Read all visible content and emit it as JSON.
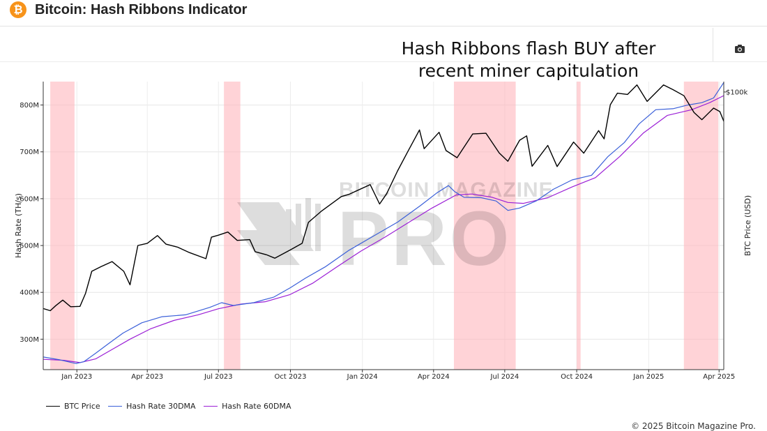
{
  "header": {
    "logo_glyph": "₿",
    "title": "Bitcoin: Hash Ribbons Indicator"
  },
  "toolbar": {
    "camera_icon": "camera-icon"
  },
  "colors": {
    "brand_orange": "#f7931a",
    "btc_price": "#000000",
    "hash_30dma": "#3a5fd9",
    "hash_60dma": "#9b1fd6",
    "capitulation_band": "#ffb6bd"
  },
  "footer": {
    "copyright": "© 2025 Bitcoin Magazine Pro."
  },
  "chart_data": {
    "type": "line",
    "title_lines": [
      "Hash Ribbons flash BUY after",
      "recent miner capitulation"
    ],
    "watermark": "BITCOIN MAGAZINE PRO",
    "x_range": [
      "2022-11-19",
      "2025-04-07"
    ],
    "x_ticks": [
      {
        "date": "2023-01-01",
        "label": "Jan 2023"
      },
      {
        "date": "2023-04-01",
        "label": "Apr 2023"
      },
      {
        "date": "2023-07-01",
        "label": "Jul 2023"
      },
      {
        "date": "2023-10-01",
        "label": "Oct 2023"
      },
      {
        "date": "2024-01-01",
        "label": "Jan 2024"
      },
      {
        "date": "2024-04-01",
        "label": "Apr 2024"
      },
      {
        "date": "2024-07-01",
        "label": "Jul 2024"
      },
      {
        "date": "2024-10-01",
        "label": "Oct 2024"
      },
      {
        "date": "2025-01-01",
        "label": "Jan 2025"
      },
      {
        "date": "2025-04-01",
        "label": "Apr 2025"
      }
    ],
    "y_left": {
      "label": "Hash Rate (TH/s)",
      "range": [
        235,
        850
      ],
      "ticks": [
        {
          "value": 300,
          "label": "300M"
        },
        {
          "value": 400,
          "label": "400M"
        },
        {
          "value": 500,
          "label": "500M"
        },
        {
          "value": 600,
          "label": "600M"
        },
        {
          "value": 700,
          "label": "700M"
        },
        {
          "value": 800,
          "label": "800M"
        }
      ]
    },
    "y_right": {
      "label": "BTC Price (USD)",
      "scale": "log",
      "range": [
        10000,
        109000
      ],
      "ticks": [
        {
          "value": 100000,
          "label": "$100k"
        }
      ]
    },
    "legend_position": "bottom-left",
    "capitulation_bands": [
      [
        "2022-11-28",
        "2022-12-29"
      ],
      [
        "2023-07-08",
        "2023-07-29"
      ],
      [
        "2024-04-27",
        "2024-07-15"
      ],
      [
        "2024-10-01",
        "2024-10-06"
      ],
      [
        "2025-02-15",
        "2025-03-31"
      ]
    ],
    "series": [
      {
        "name": "BTC Price",
        "points": [
          [
            "2022-11-19",
            16600
          ],
          [
            "2022-11-28",
            16300
          ],
          [
            "2022-12-05",
            17000
          ],
          [
            "2022-12-14",
            17800
          ],
          [
            "2022-12-24",
            16850
          ],
          [
            "2023-01-05",
            16900
          ],
          [
            "2023-01-12",
            18800
          ],
          [
            "2023-01-20",
            22600
          ],
          [
            "2023-02-01",
            23500
          ],
          [
            "2023-02-15",
            24500
          ],
          [
            "2023-03-02",
            22600
          ],
          [
            "2023-03-10",
            20200
          ],
          [
            "2023-03-20",
            28000
          ],
          [
            "2023-04-01",
            28500
          ],
          [
            "2023-04-14",
            30400
          ],
          [
            "2023-04-25",
            28300
          ],
          [
            "2023-05-10",
            27600
          ],
          [
            "2023-05-25",
            26400
          ],
          [
            "2023-06-15",
            25100
          ],
          [
            "2023-06-22",
            30000
          ],
          [
            "2023-07-01",
            30500
          ],
          [
            "2023-07-13",
            31300
          ],
          [
            "2023-07-25",
            29200
          ],
          [
            "2023-08-10",
            29400
          ],
          [
            "2023-08-17",
            26600
          ],
          [
            "2023-09-01",
            25900
          ],
          [
            "2023-09-11",
            25200
          ],
          [
            "2023-10-01",
            27000
          ],
          [
            "2023-10-16",
            28500
          ],
          [
            "2023-10-24",
            33900
          ],
          [
            "2023-11-10",
            37300
          ],
          [
            "2023-12-05",
            42000
          ],
          [
            "2023-12-15",
            42800
          ],
          [
            "2024-01-11",
            46400
          ],
          [
            "2024-01-23",
            39500
          ],
          [
            "2024-02-01",
            43000
          ],
          [
            "2024-02-15",
            52000
          ],
          [
            "2024-02-28",
            61000
          ],
          [
            "2024-03-14",
            73000
          ],
          [
            "2024-03-20",
            62500
          ],
          [
            "2024-04-08",
            71600
          ],
          [
            "2024-04-17",
            61500
          ],
          [
            "2024-05-01",
            58000
          ],
          [
            "2024-05-21",
            70600
          ],
          [
            "2024-06-07",
            71000
          ],
          [
            "2024-06-24",
            60300
          ],
          [
            "2024-07-05",
            56300
          ],
          [
            "2024-07-20",
            67000
          ],
          [
            "2024-07-29",
            69500
          ],
          [
            "2024-08-05",
            54000
          ],
          [
            "2024-08-25",
            64200
          ],
          [
            "2024-09-06",
            53900
          ],
          [
            "2024-09-27",
            66000
          ],
          [
            "2024-10-10",
            60200
          ],
          [
            "2024-10-29",
            72600
          ],
          [
            "2024-11-05",
            67800
          ],
          [
            "2024-11-13",
            90000
          ],
          [
            "2024-11-22",
            99000
          ],
          [
            "2024-12-05",
            98000
          ],
          [
            "2024-12-17",
            106000
          ],
          [
            "2024-12-30",
            92500
          ],
          [
            "2025-01-20",
            106000
          ],
          [
            "2025-02-01",
            102000
          ],
          [
            "2025-02-15",
            97000
          ],
          [
            "2025-02-28",
            84300
          ],
          [
            "2025-03-10",
            79500
          ],
          [
            "2025-03-25",
            87500
          ],
          [
            "2025-04-02",
            85000
          ],
          [
            "2025-04-07",
            78500
          ]
        ]
      },
      {
        "name": "Hash Rate 30DMA",
        "points": [
          [
            "2022-11-19",
            262
          ],
          [
            "2022-12-10",
            256
          ],
          [
            "2022-12-31",
            248
          ],
          [
            "2023-01-10",
            252
          ],
          [
            "2023-01-25",
            270
          ],
          [
            "2023-02-10",
            290
          ],
          [
            "2023-03-01",
            313
          ],
          [
            "2023-03-25",
            335
          ],
          [
            "2023-04-20",
            348
          ],
          [
            "2023-05-20",
            352
          ],
          [
            "2023-06-20",
            368
          ],
          [
            "2023-07-05",
            378
          ],
          [
            "2023-07-20",
            372
          ],
          [
            "2023-08-15",
            378
          ],
          [
            "2023-09-10",
            390
          ],
          [
            "2023-10-01",
            410
          ],
          [
            "2023-10-20",
            430
          ],
          [
            "2023-11-15",
            455
          ],
          [
            "2023-12-15",
            490
          ],
          [
            "2024-01-15",
            520
          ],
          [
            "2024-02-15",
            550
          ],
          [
            "2024-03-15",
            585
          ],
          [
            "2024-04-05",
            612
          ],
          [
            "2024-04-20",
            628
          ],
          [
            "2024-04-28",
            615
          ],
          [
            "2024-05-10",
            603
          ],
          [
            "2024-06-01",
            602
          ],
          [
            "2024-06-20",
            595
          ],
          [
            "2024-07-05",
            575
          ],
          [
            "2024-07-20",
            580
          ],
          [
            "2024-08-10",
            595
          ],
          [
            "2024-09-01",
            620
          ],
          [
            "2024-09-25",
            640
          ],
          [
            "2024-10-20",
            650
          ],
          [
            "2024-11-10",
            690
          ],
          [
            "2024-12-01",
            720
          ],
          [
            "2024-12-20",
            760
          ],
          [
            "2025-01-10",
            790
          ],
          [
            "2025-02-01",
            792
          ],
          [
            "2025-02-20",
            800
          ],
          [
            "2025-03-10",
            805
          ],
          [
            "2025-03-25",
            815
          ],
          [
            "2025-04-07",
            848
          ]
        ]
      },
      {
        "name": "Hash Rate 60DMA",
        "points": [
          [
            "2022-11-19",
            257
          ],
          [
            "2022-12-15",
            255
          ],
          [
            "2023-01-05",
            250
          ],
          [
            "2023-01-25",
            258
          ],
          [
            "2023-02-15",
            278
          ],
          [
            "2023-03-10",
            300
          ],
          [
            "2023-04-05",
            322
          ],
          [
            "2023-05-05",
            340
          ],
          [
            "2023-06-05",
            352
          ],
          [
            "2023-07-01",
            365
          ],
          [
            "2023-07-30",
            375
          ],
          [
            "2023-08-30",
            380
          ],
          [
            "2023-09-30",
            395
          ],
          [
            "2023-10-30",
            420
          ],
          [
            "2023-11-30",
            455
          ],
          [
            "2023-12-30",
            488
          ],
          [
            "2024-01-30",
            518
          ],
          [
            "2024-02-28",
            548
          ],
          [
            "2024-03-30",
            580
          ],
          [
            "2024-04-30",
            608
          ],
          [
            "2024-05-20",
            610
          ],
          [
            "2024-06-15",
            603
          ],
          [
            "2024-07-05",
            592
          ],
          [
            "2024-07-25",
            590
          ],
          [
            "2024-08-25",
            602
          ],
          [
            "2024-09-25",
            625
          ],
          [
            "2024-10-25",
            645
          ],
          [
            "2024-11-25",
            690
          ],
          [
            "2024-12-25",
            740
          ],
          [
            "2025-01-25",
            778
          ],
          [
            "2025-02-25",
            790
          ],
          [
            "2025-03-20",
            805
          ],
          [
            "2025-04-07",
            820
          ]
        ]
      }
    ]
  }
}
